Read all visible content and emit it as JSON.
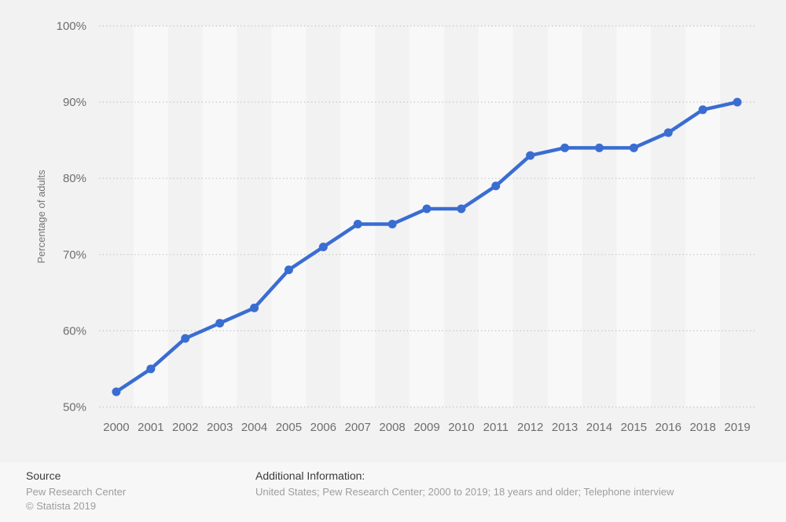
{
  "chart_data": {
    "type": "line",
    "title": "",
    "xlabel": "",
    "ylabel": "Percentage of adults",
    "x": [
      "2000",
      "2001",
      "2002",
      "2003",
      "2004",
      "2005",
      "2006",
      "2007",
      "2008",
      "2009",
      "2010",
      "2011",
      "2012",
      "2013",
      "2014",
      "2015",
      "2016",
      "2018",
      "2019"
    ],
    "values": [
      52,
      55,
      59,
      61,
      63,
      68,
      71,
      74,
      74,
      76,
      76,
      79,
      83,
      84,
      84,
      84,
      86,
      89,
      90
    ],
    "unit": "%",
    "ylim": [
      50,
      100
    ],
    "y_ticks": [
      {
        "value": 50,
        "label": "50%"
      },
      {
        "value": 60,
        "label": "60%"
      },
      {
        "value": 70,
        "label": "70%"
      },
      {
        "value": 80,
        "label": "80%"
      },
      {
        "value": 90,
        "label": "90%"
      },
      {
        "value": 100,
        "label": "100%"
      }
    ],
    "grid": "horizontal-dotted",
    "legend": "none",
    "marker": "circle",
    "plot_background": "alternating-vertical-stripes"
  },
  "colors": {
    "line": "#3a6dd2",
    "marker": "#3a6dd2",
    "background": "#f2f2f2",
    "stripe_light": "#f8f8f9",
    "grid": "#c8c8c8",
    "tick_text": "#6e6e6e",
    "axis_title_text": "#757575",
    "footer_background": "#f7f7f8",
    "footer_heading_text": "#3b3b3b",
    "footer_body_text": "#9d9d9d"
  },
  "footer": {
    "source_label": "Source",
    "source_value": "Pew Research Center",
    "copyright": "© Statista 2019",
    "additional_info_label": "Additional Information:",
    "additional_info_value": "United States; Pew Research Center; 2000 to 2019; 18 years and older; Telephone interview"
  }
}
